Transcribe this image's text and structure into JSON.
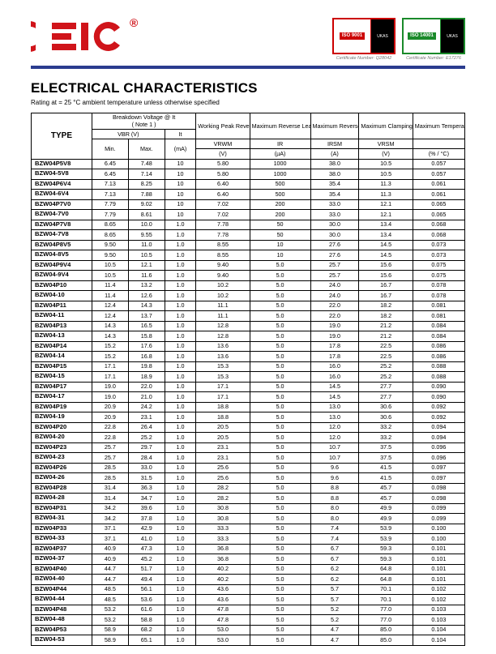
{
  "logo": {
    "brand": "EIC",
    "reg": "®",
    "color": "#d0141a"
  },
  "certs": [
    {
      "iso": "ISO\n9001",
      "iso_bg": "#cc0000",
      "border": "#cc0000",
      "caption": "Certificate Number: Q28042"
    },
    {
      "iso": "ISO\n14001",
      "iso_bg": "#1a8a2a",
      "border": "#1a8a2a",
      "caption": "Certificate Number: E17276"
    }
  ],
  "title": "ELECTRICAL CHARACTERISTICS",
  "subtitle": "Rating at  = 25 °C ambient temperature unless otherwise specified",
  "columns": {
    "type": "TYPE",
    "bv": {
      "group": "Breakdown Voltage @ It",
      "note": "( Note 1 )",
      "sub1": "VBR (V)",
      "sub2": "It",
      "min": "Min.",
      "max": "Max.",
      "unit_it": "(mA)"
    },
    "wprv": {
      "group": "Working Peak Reverse Voltage",
      "sym": "VRWM",
      "unit": "(V)"
    },
    "mrl": {
      "group": "Maximum Reverse Leakage @ VRWM",
      "sym": "IR",
      "unit": "(µA)"
    },
    "mrc": {
      "group": "Maximum Reverse Current",
      "sym": "IRSM",
      "unit": "(A)"
    },
    "mcv": {
      "group": "Maximum Clamping Voltage @ IRSM",
      "sym": "VRSM",
      "unit": "(V)"
    },
    "mtc": {
      "group": "Maximum Temperature Co-efficient of VBR",
      "sym": "",
      "unit": "(% / °C)"
    }
  },
  "rows": [
    [
      "BZW04P5V8",
      "6.45",
      "7.48",
      "10",
      "5.80",
      "1000",
      "38.0",
      "10.5",
      "0.057"
    ],
    [
      "BZW04-5V8",
      "6.45",
      "7.14",
      "10",
      "5.80",
      "1000",
      "38.0",
      "10.5",
      "0.057"
    ],
    [
      "BZW04P6V4",
      "7.13",
      "8.25",
      "10",
      "6.40",
      "500",
      "35.4",
      "11.3",
      "0.061"
    ],
    [
      "BZW04-6V4",
      "7.13",
      "7.88",
      "10",
      "6.40",
      "500",
      "35.4",
      "11.3",
      "0.061"
    ],
    [
      "BZW04P7V0",
      "7.79",
      "9.02",
      "10",
      "7.02",
      "200",
      "33.0",
      "12.1",
      "0.065"
    ],
    [
      "BZW04-7V0",
      "7.79",
      "8.61",
      "10",
      "7.02",
      "200",
      "33.0",
      "12.1",
      "0.065"
    ],
    [
      "BZW04P7V8",
      "8.65",
      "10.0",
      "1.0",
      "7.78",
      "50",
      "30.0",
      "13.4",
      "0.068"
    ],
    [
      "BZW04-7V8",
      "8.65",
      "9.55",
      "1.0",
      "7.78",
      "50",
      "30.0",
      "13.4",
      "0.068"
    ],
    [
      "BZW04P8V5",
      "9.50",
      "11.0",
      "1.0",
      "8.55",
      "10",
      "27.6",
      "14.5",
      "0.073"
    ],
    [
      "BZW04-8V5",
      "9.50",
      "10.5",
      "1.0",
      "8.55",
      "10",
      "27.6",
      "14.5",
      "0.073"
    ],
    [
      "BZW04P9V4",
      "10.5",
      "12.1",
      "1.0",
      "9.40",
      "5.0",
      "25.7",
      "15.6",
      "0.075"
    ],
    [
      "BZW04-9V4",
      "10.5",
      "11.6",
      "1.0",
      "9.40",
      "5.0",
      "25.7",
      "15.6",
      "0.075"
    ],
    [
      "BZW04P10",
      "11.4",
      "13.2",
      "1.0",
      "10.2",
      "5.0",
      "24.0",
      "16.7",
      "0.078"
    ],
    [
      "BZW04-10",
      "11.4",
      "12.6",
      "1.0",
      "10.2",
      "5.0",
      "24.0",
      "16.7",
      "0.078"
    ],
    [
      "BZW04P11",
      "12.4",
      "14.3",
      "1.0",
      "11.1",
      "5.0",
      "22.0",
      "18.2",
      "0.081"
    ],
    [
      "BZW04-11",
      "12.4",
      "13.7",
      "1.0",
      "11.1",
      "5.0",
      "22.0",
      "18.2",
      "0.081"
    ],
    [
      "BZW04P13",
      "14.3",
      "16.5",
      "1.0",
      "12.8",
      "5.0",
      "19.0",
      "21.2",
      "0.084"
    ],
    [
      "BZW04-13",
      "14.3",
      "15.8",
      "1.0",
      "12.8",
      "5.0",
      "19.0",
      "21.2",
      "0.084"
    ],
    [
      "BZW04P14",
      "15.2",
      "17.6",
      "1.0",
      "13.6",
      "5.0",
      "17.8",
      "22.5",
      "0.086"
    ],
    [
      "BZW04-14",
      "15.2",
      "16.8",
      "1.0",
      "13.6",
      "5.0",
      "17.8",
      "22.5",
      "0.086"
    ],
    [
      "BZW04P15",
      "17.1",
      "19.8",
      "1.0",
      "15.3",
      "5.0",
      "16.0",
      "25.2",
      "0.088"
    ],
    [
      "BZW04-15",
      "17.1",
      "18.9",
      "1.0",
      "15.3",
      "5.0",
      "16.0",
      "25.2",
      "0.088"
    ],
    [
      "BZW04P17",
      "19.0",
      "22.0",
      "1.0",
      "17.1",
      "5.0",
      "14.5",
      "27.7",
      "0.090"
    ],
    [
      "BZW04-17",
      "19.0",
      "21.0",
      "1.0",
      "17.1",
      "5.0",
      "14.5",
      "27.7",
      "0.090"
    ],
    [
      "BZW04P19",
      "20.9",
      "24.2",
      "1.0",
      "18.8",
      "5.0",
      "13.0",
      "30.6",
      "0.092"
    ],
    [
      "BZW04-19",
      "20.9",
      "23.1",
      "1.0",
      "18.8",
      "5.0",
      "13.0",
      "30.6",
      "0.092"
    ],
    [
      "BZW04P20",
      "22.8",
      "26.4",
      "1.0",
      "20.5",
      "5.0",
      "12.0",
      "33.2",
      "0.094"
    ],
    [
      "BZW04-20",
      "22.8",
      "25.2",
      "1.0",
      "20.5",
      "5.0",
      "12.0",
      "33.2",
      "0.094"
    ],
    [
      "BZW04P23",
      "25.7",
      "29.7",
      "1.0",
      "23.1",
      "5.0",
      "10.7",
      "37.5",
      "0.096"
    ],
    [
      "BZW04-23",
      "25.7",
      "28.4",
      "1.0",
      "23.1",
      "5.0",
      "10.7",
      "37.5",
      "0.096"
    ],
    [
      "BZW04P26",
      "28.5",
      "33.0",
      "1.0",
      "25.6",
      "5.0",
      "9.6",
      "41.5",
      "0.097"
    ],
    [
      "BZW04-26",
      "28.5",
      "31.5",
      "1.0",
      "25.6",
      "5.0",
      "9.6",
      "41.5",
      "0.097"
    ],
    [
      "BZW04P28",
      "31.4",
      "36.3",
      "1.0",
      "28.2",
      "5.0",
      "8.8",
      "45.7",
      "0.098"
    ],
    [
      "BZW04-28",
      "31.4",
      "34.7",
      "1.0",
      "28.2",
      "5.0",
      "8.8",
      "45.7",
      "0.098"
    ],
    [
      "BZW04P31",
      "34.2",
      "39.6",
      "1.0",
      "30.8",
      "5.0",
      "8.0",
      "49.9",
      "0.099"
    ],
    [
      "BZW04-31",
      "34.2",
      "37.8",
      "1.0",
      "30.8",
      "5.0",
      "8.0",
      "49.9",
      "0.099"
    ],
    [
      "BZW04P33",
      "37.1",
      "42.9",
      "1.0",
      "33.3",
      "5.0",
      "7.4",
      "53.9",
      "0.100"
    ],
    [
      "BZW04-33",
      "37.1",
      "41.0",
      "1.0",
      "33.3",
      "5.0",
      "7.4",
      "53.9",
      "0.100"
    ],
    [
      "BZW04P37",
      "40.9",
      "47.3",
      "1.0",
      "36.8",
      "5.0",
      "6.7",
      "59.3",
      "0.101"
    ],
    [
      "BZW04-37",
      "40.9",
      "45.2",
      "1.0",
      "36.8",
      "5.0",
      "6.7",
      "59.3",
      "0.101"
    ],
    [
      "BZW04P40",
      "44.7",
      "51.7",
      "1.0",
      "40.2",
      "5.0",
      "6.2",
      "64.8",
      "0.101"
    ],
    [
      "BZW04-40",
      "44.7",
      "49.4",
      "1.0",
      "40.2",
      "5.0",
      "6.2",
      "64.8",
      "0.101"
    ],
    [
      "BZW04P44",
      "48.5",
      "56.1",
      "1.0",
      "43.6",
      "5.0",
      "5.7",
      "70.1",
      "0.102"
    ],
    [
      "BZW04-44",
      "48.5",
      "53.6",
      "1.0",
      "43.6",
      "5.0",
      "5.7",
      "70.1",
      "0.102"
    ],
    [
      "BZW04P48",
      "53.2",
      "61.6",
      "1.0",
      "47.8",
      "5.0",
      "5.2",
      "77.0",
      "0.103"
    ],
    [
      "BZW04-48",
      "53.2",
      "58.8",
      "1.0",
      "47.8",
      "5.0",
      "5.2",
      "77.0",
      "0.103"
    ],
    [
      "BZW04P53",
      "58.9",
      "68.2",
      "1.0",
      "53.0",
      "5.0",
      "4.7",
      "85.0",
      "0.104"
    ],
    [
      "BZW04-53",
      "58.9",
      "65.1",
      "1.0",
      "53.0",
      "5.0",
      "4.7",
      "85.0",
      "0.104"
    ]
  ]
}
